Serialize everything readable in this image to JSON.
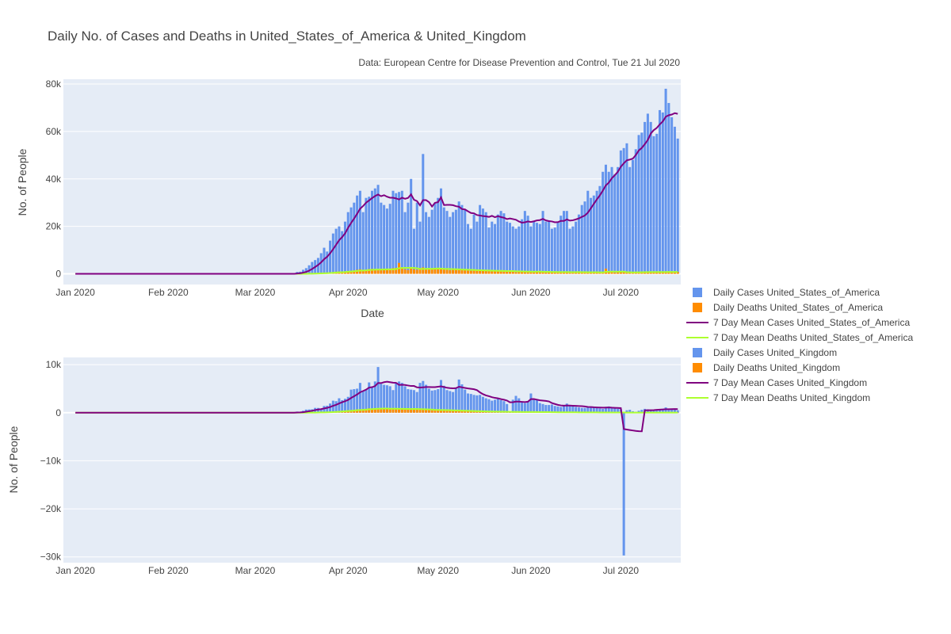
{
  "chart_data": {
    "title": "Daily No. of Cases and Deaths in United_States_of_America & United_Kingdom",
    "subtitle": "Data: European Centre for Disease Prevention and Control, Tue 21 Jul 2020",
    "colors": {
      "daily_cases": "#6495ED",
      "daily_deaths": "#FF8C00",
      "mean_cases": "#800080",
      "mean_deaths": "#ADFF2F",
      "plot_bg": "#E5ECF6",
      "grid": "#ffffff"
    },
    "legend": {
      "position": "right",
      "entries": [
        {
          "label": "Daily Cases United_States_of_America",
          "kind": "bar",
          "color": "#6495ED"
        },
        {
          "label": "Daily Deaths United_States_of_America",
          "kind": "bar",
          "color": "#FF8C00"
        },
        {
          "label": "7 Day Mean Cases United_States_of_America",
          "kind": "line",
          "color": "#800080"
        },
        {
          "label": "7 Day Mean Deaths United_States_of_America",
          "kind": "line",
          "color": "#ADFF2F"
        },
        {
          "label": "Daily Cases United_Kingdom",
          "kind": "bar",
          "color": "#6495ED"
        },
        {
          "label": "Daily Deaths United_Kingdom",
          "kind": "bar",
          "color": "#FF8C00"
        },
        {
          "label": "7 Day Mean Cases United_Kingdom",
          "kind": "line",
          "color": "#800080"
        },
        {
          "label": "7 Day Mean Deaths United_Kingdom",
          "kind": "line",
          "color": "#ADFF2F"
        }
      ]
    },
    "x_tick_labels": [
      {
        "date": "2020-01-01",
        "label": "Jan 2020"
      },
      {
        "date": "2020-02-01",
        "label": "Feb 2020"
      },
      {
        "date": "2020-03-01",
        "label": "Mar 2020"
      },
      {
        "date": "2020-04-01",
        "label": "Apr 2020"
      },
      {
        "date": "2020-05-01",
        "label": "May 2020"
      },
      {
        "date": "2020-06-01",
        "label": "Jun 2020"
      },
      {
        "date": "2020-07-01",
        "label": "Jul 2020"
      }
    ],
    "xlim": [
      "2019-12-28",
      "2020-07-21"
    ],
    "panels": [
      {
        "country": "United_States_of_America",
        "type": "bar",
        "xlabel": "Date",
        "ylabel": "No. of People",
        "ylim": [
          -4500,
          82000
        ],
        "yticks": [
          0,
          20000,
          40000,
          60000,
          80000
        ],
        "ytick_labels": [
          "0",
          "20k",
          "40k",
          "60k",
          "80k"
        ],
        "first_date": "2020-03-15",
        "daily_cases": [
          800,
          900,
          1700,
          2400,
          3600,
          5000,
          5800,
          6700,
          8700,
          11000,
          9400,
          14000,
          17000,
          19000,
          20000,
          18000,
          22000,
          26000,
          28000,
          30000,
          33000,
          35000,
          26000,
          32000,
          32500,
          35000,
          36000,
          37500,
          30000,
          29000,
          27500,
          29500,
          35000,
          34000,
          34500,
          35000,
          26000,
          30000,
          40000,
          19000,
          30000,
          22000,
          50500,
          26000,
          24000,
          27000,
          30000,
          32000,
          36000,
          28000,
          26500,
          24000,
          26000,
          27000,
          30500,
          29000,
          27000,
          21000,
          19000,
          25000,
          22000,
          29000,
          27500,
          26000,
          19500,
          22000,
          21000,
          25000,
          26500,
          25500,
          22000,
          21500,
          20000,
          19000,
          20000,
          23000,
          26500,
          24500,
          20000,
          22000,
          21500,
          21000,
          26500,
          22000,
          22500,
          19000,
          19500,
          22000,
          24500,
          26500,
          26500,
          19000,
          20000,
          22000,
          25000,
          29000,
          30500,
          35000,
          32000,
          33000,
          35000,
          37000,
          43000,
          46000,
          43000,
          45000,
          42000,
          45000,
          52000,
          53000,
          55000,
          45000,
          48000,
          52500,
          58500,
          59500,
          64000,
          67500,
          64000,
          58000,
          59000,
          69000,
          68000,
          78000,
          72000,
          66000,
          62000,
          57000
        ],
        "daily_deaths": [
          20,
          30,
          60,
          90,
          120,
          150,
          170,
          240,
          300,
          400,
          430,
          600,
          700,
          900,
          1000,
          800,
          1000,
          1200,
          1300,
          1400,
          1700,
          1900,
          1300,
          1500,
          2000,
          2100,
          1900,
          1800,
          2100,
          1500,
          1700,
          2000,
          2400,
          2500,
          4600,
          2500,
          1900,
          1600,
          2300,
          1900,
          1700,
          2400,
          2700,
          2200,
          1800,
          2100,
          2400,
          2300,
          2100,
          1900,
          1700,
          1500,
          1900,
          2200,
          1800,
          1700,
          1600,
          1400,
          1300,
          1400,
          1600,
          1500,
          1400,
          1300,
          1100,
          1000,
          1200,
          1300,
          1400,
          1200,
          1100,
          1000,
          900,
          700,
          1000,
          1100,
          1000,
          900,
          800,
          700,
          900,
          1000,
          900,
          800,
          700,
          600,
          600,
          800,
          900,
          850,
          750,
          600,
          550,
          650,
          900,
          750,
          700,
          600,
          500,
          550,
          700,
          650,
          600,
          2200,
          1000,
          700,
          500,
          650,
          700,
          750,
          800,
          500,
          400,
          600,
          800,
          900,
          950,
          850,
          700,
          500,
          600,
          850,
          900,
          1000,
          950,
          700,
          500,
          800
        ]
      },
      {
        "country": "United_Kingdom",
        "type": "bar",
        "xlabel": "",
        "ylabel": "No. of People",
        "ylim": [
          -31200,
          11500
        ],
        "yticks": [
          -30000,
          -20000,
          -10000,
          0,
          10000
        ],
        "ytick_labels": [
          "−30k",
          "−20k",
          "−10k",
          "0",
          "10k"
        ],
        "first_date": "2020-03-15",
        "daily_cases": [
          230,
          150,
          400,
          650,
          680,
          700,
          1000,
          990,
          800,
          1400,
          1450,
          1900,
          2500,
          2400,
          3000,
          2600,
          2900,
          3300,
          4800,
          4900,
          5000,
          6200,
          4500,
          4900,
          6300,
          5400,
          6500,
          9500,
          6000,
          5800,
          5700,
          5500,
          4700,
          6300,
          6500,
          6200,
          5500,
          4900,
          4800,
          4700,
          4300,
          6200,
          6600,
          5800,
          5000,
          4600,
          4700,
          4900,
          6800,
          5600,
          4700,
          4500,
          4300,
          5000,
          6900,
          5900,
          4800,
          4000,
          3900,
          3700,
          3600,
          3700,
          3300,
          3000,
          2800,
          2500,
          2700,
          2900,
          2600,
          2400,
          1800,
          200,
          2700,
          3500,
          3000,
          2200,
          2000,
          2400,
          4000,
          2800,
          2600,
          2000,
          1800,
          1600,
          1600,
          1700,
          1400,
          1300,
          1200,
          1400,
          1900,
          1500,
          1400,
          1200,
          1100,
          1000,
          1000,
          1200,
          1300,
          1100,
          1000,
          900,
          800,
          1200,
          1300,
          1000,
          900,
          800,
          700,
          -29700,
          500,
          600,
          300,
          200,
          400,
          600,
          800,
          700,
          600,
          500,
          600,
          700,
          800,
          1100,
          800,
          700,
          600,
          500
        ],
        "daily_deaths": [
          0,
          10,
          20,
          30,
          40,
          50,
          60,
          80,
          90,
          100,
          150,
          200,
          250,
          300,
          350,
          400,
          450,
          500,
          550,
          600,
          700,
          650,
          700,
          800,
          900,
          800,
          950,
          900,
          850,
          800,
          800,
          750,
          700,
          900,
          850,
          800,
          750,
          700,
          650,
          800,
          750,
          700,
          650,
          600,
          550,
          500,
          500,
          550,
          600,
          550,
          450,
          400,
          350,
          400,
          450,
          420,
          380,
          300,
          280,
          260,
          280,
          300,
          250,
          230,
          200,
          180,
          200,
          220,
          200,
          180,
          160,
          120,
          150,
          170,
          160,
          140,
          130,
          130,
          140,
          130,
          120,
          100,
          100,
          110,
          100,
          90,
          80,
          70,
          80,
          80,
          90,
          70,
          60,
          60,
          50,
          50,
          60,
          60,
          55,
          50,
          45,
          40,
          50,
          45,
          40,
          35,
          30,
          30,
          25,
          20,
          20,
          25,
          20,
          20,
          20,
          25,
          20,
          15,
          15,
          20,
          20,
          15,
          15,
          20,
          15,
          15,
          10,
          10
        ]
      }
    ]
  }
}
